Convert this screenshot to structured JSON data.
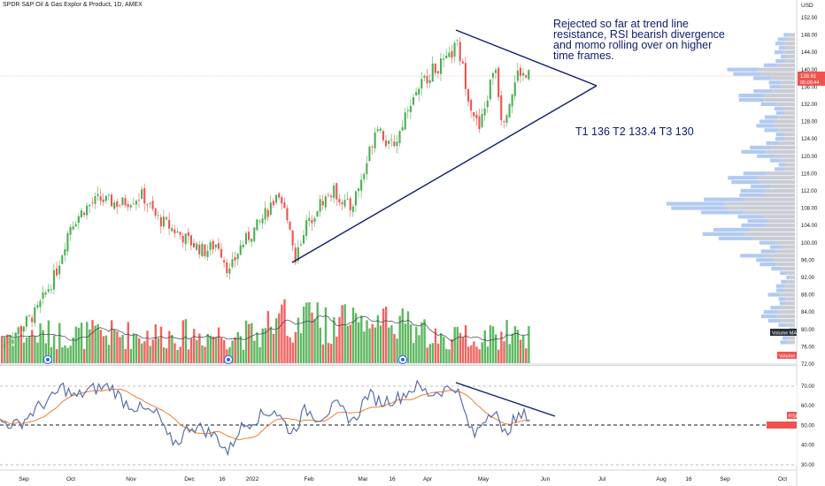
{
  "header": {
    "symbol_line": "SPDR S&P Oil & Gas Explor & Product, 1D, AMEX"
  },
  "annotation": {
    "lines": [
      "Rejected so far at trend line",
      "resistance, RSI bearish divergence",
      "and momo rolling over on higher",
      "time frames."
    ],
    "targets": "T1 136 T2 133.4 T3 130"
  },
  "price_axis": {
    "currency": "USD",
    "ticks": [
      "152.00",
      "148.00",
      "144.00",
      "140.00",
      "136.00",
      "132.00",
      "128.00",
      "124.00",
      "120.00",
      "116.00",
      "112.00",
      "108.00",
      "104.00",
      "100.00",
      "96.00",
      "92.00",
      "88.00",
      "84.00",
      "80.00",
      "76.00",
      "72.00"
    ],
    "last_price": "138.61",
    "countdown": "05:08:44",
    "volume_ma_label": "Volume MA",
    "volume_label": "Volume"
  },
  "rsi_axis": {
    "ticks": [
      "70.00",
      "60.00",
      "50.00",
      "40.00",
      "30.00"
    ],
    "rsi_label": "RSI"
  },
  "time_axis": {
    "labels": [
      "Sep",
      "Oct",
      "Nov",
      "Dec",
      "16",
      "2022",
      "Feb",
      "Mar",
      "16",
      "Apr",
      "May",
      "Jun",
      "Jul",
      "Aug",
      "16",
      "Sep",
      "Oct"
    ]
  },
  "colors": {
    "up": "#26a69a",
    "up_candle": "#4caf50",
    "down": "#ef5350",
    "trendline": "#0d1b6e",
    "rsi": "#5b6fa8",
    "rsi_ma": "#f07f2c",
    "profile_up": "#a8c4f0",
    "profile_down": "#c4c7cf",
    "ma_line": "#3a3f4a"
  },
  "chart_data": {
    "type": "candlestick",
    "price_range": [
      72,
      152
    ],
    "rsi_range": [
      25,
      75
    ],
    "pattern": "rising wedge",
    "lower_trendline": [
      {
        "date": "Jan 2022",
        "price": 95
      },
      {
        "date": "Jun 2022",
        "price": 137.5
      }
    ],
    "upper_trendline": [
      {
        "date": "Apr 2022",
        "price": 149
      },
      {
        "date": "Jun 2022",
        "price": 137.5
      }
    ],
    "last_close": 138.61,
    "rsi_levels": [
      70,
      50,
      30
    ]
  }
}
